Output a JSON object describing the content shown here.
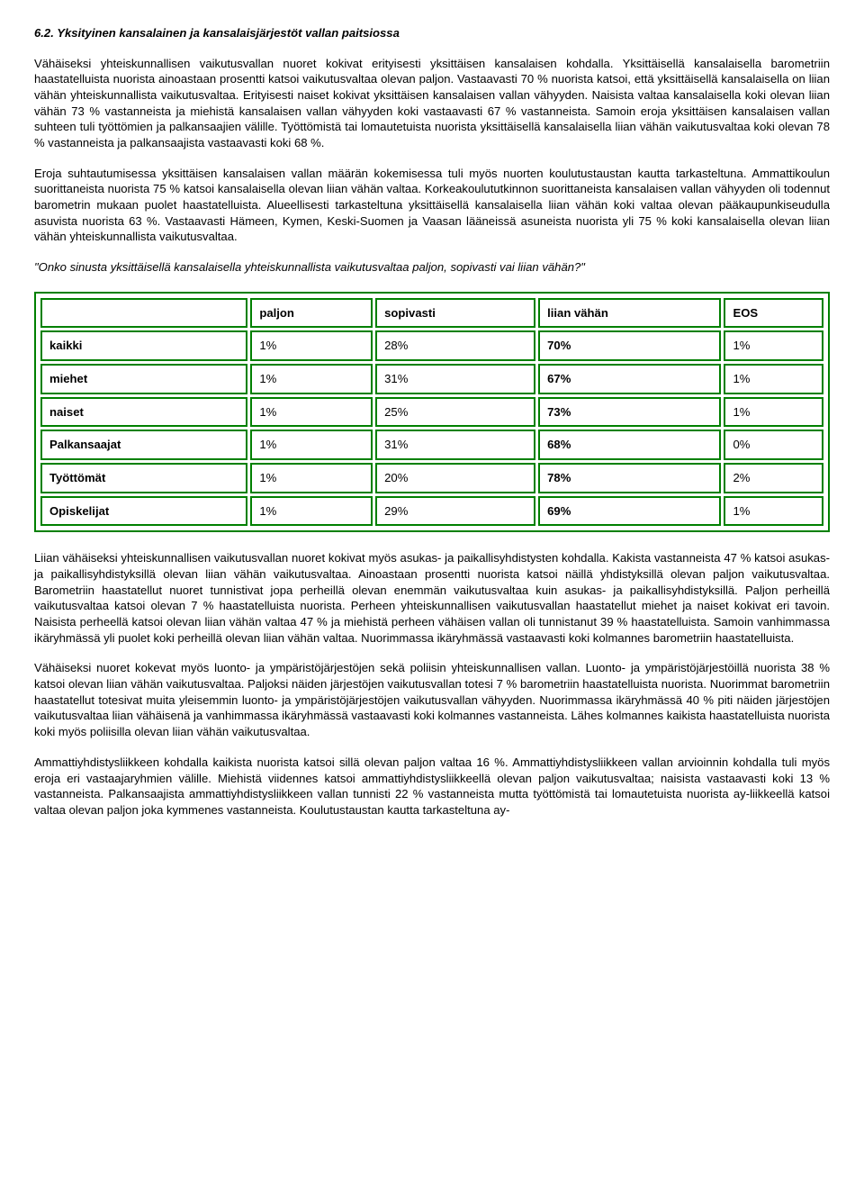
{
  "heading": "6.2. Yksityinen kansalainen ja kansalaisjärjestöt vallan paitsiossa",
  "para1": "Vähäiseksi yhteiskunnallisen vaikutusvallan nuoret kokivat erityisesti yksittäisen kansalaisen kohdalla. Yksittäisellä kansalaisella barometriin haastatelluista nuorista ainoastaan prosentti katsoi vaikutusvaltaa olevan paljon. Vastaavasti 70 % nuorista katsoi, että yksittäisellä kansalaisella on liian vähän yhteiskunnallista vaikutusvaltaa. Erityisesti naiset kokivat yksittäisen kansalaisen vallan vähyyden. Naisista valtaa kansalaisella koki olevan liian vähän 73 % vastanneista ja miehistä kansalaisen vallan vähyyden koki vastaavasti 67 % vastanneista. Samoin eroja yksittäisen kansalaisen vallan suhteen tuli työttömien ja palkansaajien välille. Työttömistä tai lomautetuista nuorista yksittäisellä kansalaisella liian vähän vaikutusvaltaa koki olevan 78 % vastanneista ja palkansaajista vastaavasti koki 68 %.",
  "para2": "Eroja suhtautumisessa yksittäisen kansalaisen vallan määrän kokemisessa tuli myös nuorten koulutustaustan kautta tarkasteltuna. Ammattikoulun suorittaneista nuorista 75 % katsoi kansalaisella olevan liian vähän valtaa. Korkeakoulututkinnon suorittaneista kansalaisen vallan vähyyden oli todennut barometrin mukaan puolet haastatelluista. Alueellisesti tarkasteltuna yksittäisellä kansalaisella liian vähän koki valtaa olevan pääkaupunkiseudulla asuvista nuorista 63 %. Vastaavasti Hämeen, Kymen, Keski-Suomen ja Vaasan lääneissä asuneista nuorista yli 75 % koki kansalaisella olevan liian vähän yhteiskunnallista vaikutusvaltaa.",
  "question": "\"Onko sinusta yksittäisellä kansalaisella yhteiskunnallista vaikutusvaltaa paljon, sopivasti vai liian vähän?\"",
  "table": {
    "columns": [
      "",
      "paljon",
      "sopivasti",
      "liian vähän",
      "EOS"
    ],
    "rows": [
      {
        "label": "kaikki",
        "cells": [
          "1%",
          "28%",
          "70%",
          "1%"
        ],
        "highlightIdx": 2
      },
      {
        "label": "miehet",
        "cells": [
          "1%",
          "31%",
          "67%",
          "1%"
        ],
        "highlightIdx": 2
      },
      {
        "label": "naiset",
        "cells": [
          "1%",
          "25%",
          "73%",
          "1%"
        ],
        "highlightIdx": 2
      },
      {
        "label": "Palkansaajat",
        "cells": [
          "1%",
          "31%",
          "68%",
          "0%"
        ],
        "highlightIdx": 2
      },
      {
        "label": "Työttömät",
        "cells": [
          "1%",
          "20%",
          "78%",
          "2%"
        ],
        "highlightIdx": 2
      },
      {
        "label": "Opiskelijat",
        "cells": [
          "1%",
          "29%",
          "69%",
          "1%"
        ],
        "highlightIdx": 2
      }
    ],
    "border_color": "#008000"
  },
  "para3": "Liian vähäiseksi yhteiskunnallisen vaikutusvallan nuoret kokivat myös asukas- ja paikallisyhdistysten kohdalla. Kakista vastanneista 47 % katsoi asukas- ja paikallisyhdistyksillä olevan liian vähän vaikutusvaltaa. Ainoastaan prosentti nuorista katsoi näillä yhdistyksillä olevan paljon vaikutusvaltaa. Barometriin haastatellut nuoret tunnistivat jopa perheillä olevan enemmän vaikutusvaltaa kuin asukas- ja paikallisyhdistyksillä. Paljon perheillä vaikutusvaltaa katsoi olevan 7 % haastatelluista nuorista. Perheen yhteiskunnallisen vaikutusvallan haastatellut miehet ja naiset kokivat eri tavoin. Naisista perheellä katsoi olevan liian vähän valtaa 47 % ja miehistä perheen vähäisen vallan oli tunnistanut 39 % haastatelluista. Samoin vanhimmassa ikäryhmässä yli puolet koki perheillä olevan liian vähän valtaa. Nuorimmassa ikäryhmässä vastaavasti koki kolmannes barometriin haastatelluista.",
  "para4": "Vähäiseksi nuoret kokevat myös luonto- ja ympäristöjärjestöjen sekä poliisin yhteiskunnallisen vallan. Luonto- ja ympäristöjärjestöillä nuorista 38 % katsoi olevan liian vähän vaikutusvaltaa. Paljoksi näiden järjestöjen vaikutusvallan totesi 7 % barometriin haastatelluista nuorista. Nuorimmat barometriin haastatellut totesivat muita yleisemmin luonto- ja ympäristöjärjestöjen vaikutusvallan vähyyden. Nuorimmassa ikäryhmässä 40 % piti näiden järjestöjen vaikutusvaltaa liian vähäisenä ja vanhimmassa ikäryhmässä vastaavasti koki kolmannes vastanneista. Lähes kolmannes kaikista haastatelluista nuorista koki myös poliisilla olevan liian vähän vaikutusvaltaa.",
  "para5": "Ammattiyhdistysliikkeen kohdalla kaikista nuorista katsoi sillä olevan paljon valtaa 16 %. Ammattiyhdistysliikkeen vallan arvioinnin kohdalla tuli myös eroja eri vastaajaryhmien välille. Miehistä viidennes katsoi ammattiyhdistysliikkeellä olevan paljon vaikutusvaltaa; naisista vastaavasti koki 13 % vastanneista. Palkansaajista ammattiyhdistysliikkeen vallan tunnisti 22 % vastanneista mutta työttömistä tai lomautetuista nuorista ay-liikkeellä katsoi valtaa olevan paljon joka kymmenes vastanneista. Koulutustaustan kautta tarkasteltuna ay-"
}
